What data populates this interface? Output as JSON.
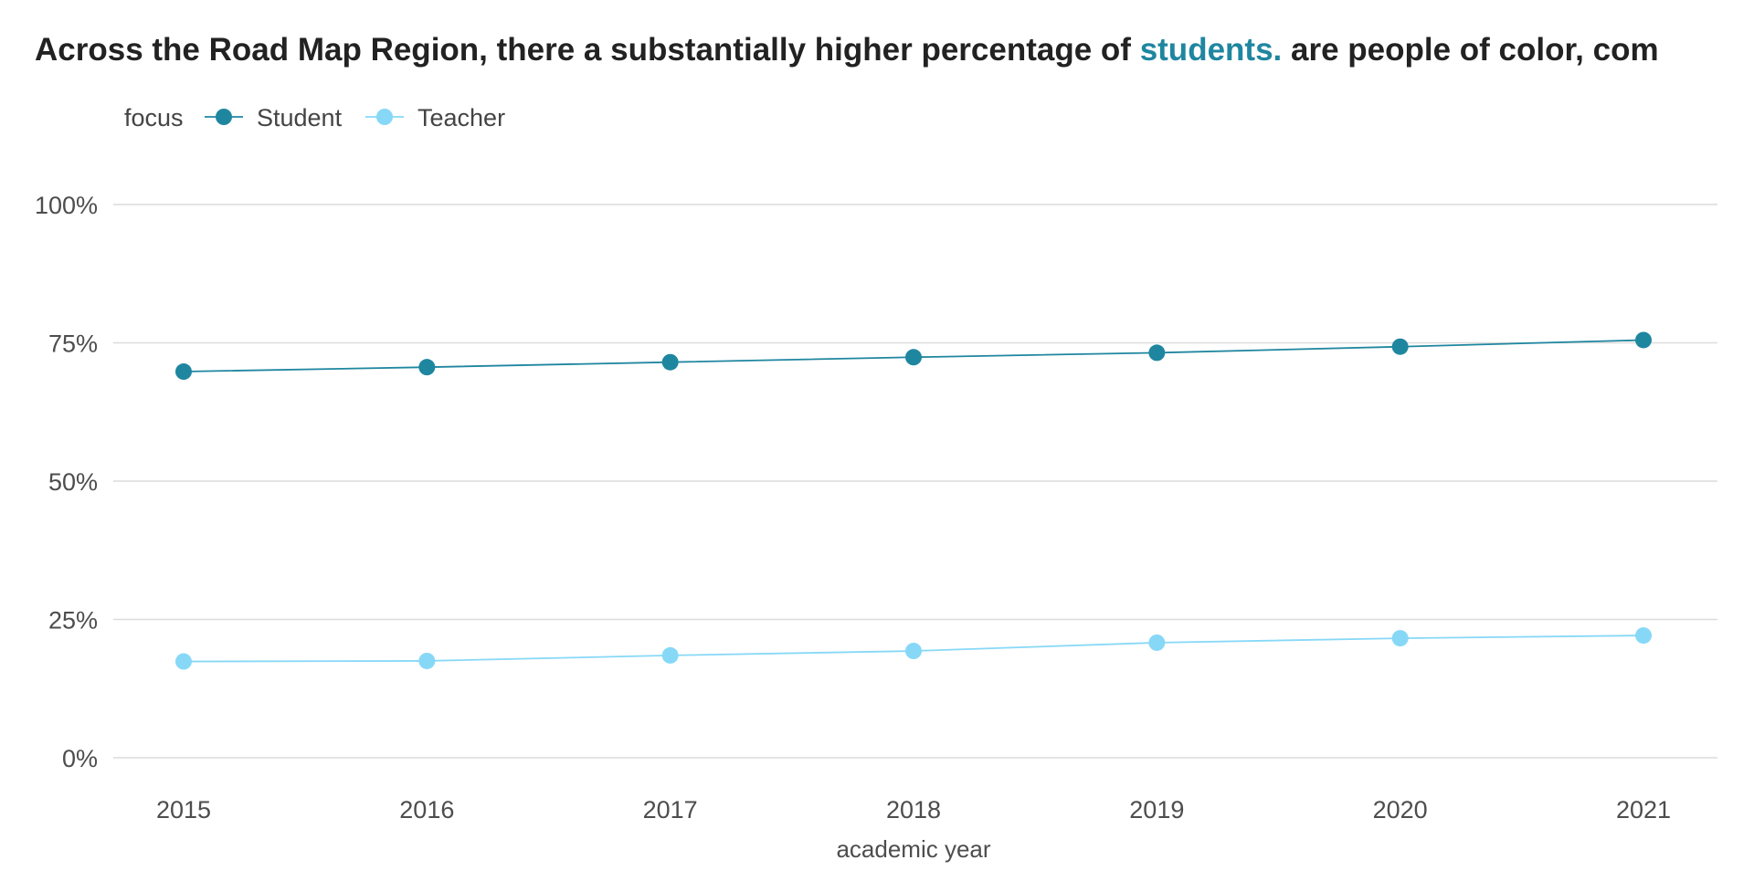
{
  "chart_data": {
    "type": "line",
    "title_parts": [
      {
        "text": "Across the Road Map Region, there a substantially higher percentage of ",
        "highlight": false
      },
      {
        "text": "students.",
        "highlight": true
      },
      {
        "text": " are people of color, com",
        "highlight": false
      }
    ],
    "title_highlight_color": "#1f86a0",
    "title_color": "#222222",
    "legend": {
      "title": "focus",
      "entries": [
        "Student",
        "Teacher"
      ],
      "position": "top-left"
    },
    "xlabel": "academic year",
    "ylabel": "",
    "x": [
      "2015",
      "2016",
      "2017",
      "2018",
      "2019",
      "2020",
      "2021"
    ],
    "ylim": [
      0,
      1
    ],
    "yticks": [
      0,
      0.25,
      0.5,
      0.75,
      1.0
    ],
    "ytick_labels": [
      "0%",
      "25%",
      "50%",
      "75%",
      "100%"
    ],
    "grid": true,
    "series": [
      {
        "name": "Student",
        "color": "#1f86a0",
        "values": [
          0.698,
          0.706,
          0.715,
          0.724,
          0.732,
          0.743,
          0.755
        ]
      },
      {
        "name": "Teacher",
        "color": "#87d8f7",
        "values": [
          0.174,
          0.175,
          0.185,
          0.193,
          0.208,
          0.216,
          0.221
        ]
      }
    ]
  }
}
